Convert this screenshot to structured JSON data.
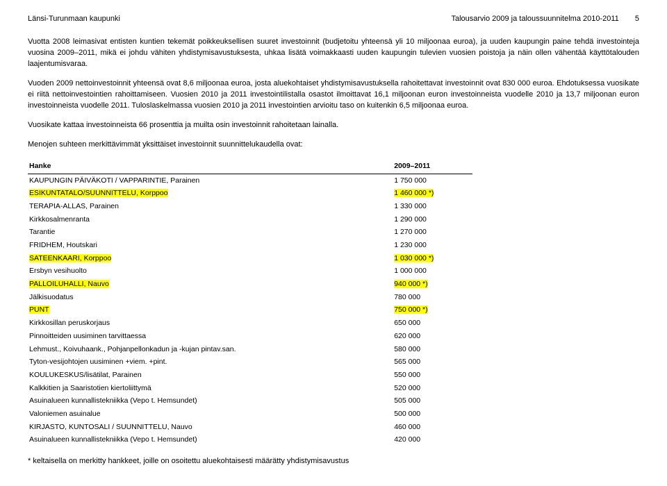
{
  "header": {
    "left": "Länsi-Turunmaan kaupunki",
    "right_title": "Talousarvio 2009 ja taloussuunnitelma 2010-2011",
    "page_number": "5"
  },
  "paragraphs": {
    "p1": "Vuotta 2008 leimasivat entisten kuntien tekemät poikkeuksellisen suuret investoinnit (budjetoitu yhteensä yli 10 miljoonaa euroa), ja uuden kaupungin paine tehdä investointeja vuosina 2009–2011, mikä ei johdu vähiten yhdistymisavustuksesta, uhkaa lisätä voimakkaasti uuden kaupungin tulevien vuosien poistoja ja näin ollen vähentää käyttötalouden laajentumisvaraa.",
    "p2": "Vuoden 2009 nettoinvestoinnit yhteensä ovat 8,6 miljoonaa euroa, josta aluekohtaiset yhdistymisavustuksella rahoitettavat investoinnit ovat 830 000 euroa. Ehdotuksessa vuosikate ei riitä nettoinvestointien rahoittamiseen. Vuosien 2010 ja 2011 investointilistalla osastot ilmoittavat 16,1 miljoonan euron investoinneista vuodelle 2010 ja 13,7 miljoonan euron investoinneista vuodelle 2011. Tuloslaskelmassa vuosien 2010 ja 2011 investointien arvioitu taso on kuitenkin 6,5 miljoonaa euroa.",
    "p3": "Vuosikate kattaa investoinneista 66 prosenttia ja muilta osin investoinnit rahoitetaan lainalla.",
    "p4": "Menojen suhteen merkittävimmät yksittäiset investoinnit suunnittelukaudella ovat:"
  },
  "table": {
    "col1": "Hanke",
    "col2": "2009–2011",
    "rows": [
      {
        "name": "KAUPUNGIN PÄIVÄKOTI / VAPPARINTIE, Parainen",
        "value": "1 750 000",
        "hl": false
      },
      {
        "name": "ESIKUNTATALO/SUUNNITTELU, Korppoo",
        "value": "1 460 000 *)",
        "hl": true
      },
      {
        "name": "TERAPIA-ALLAS, Parainen",
        "value": "1 330 000",
        "hl": false
      },
      {
        "name": "Kirkkosalmenranta",
        "value": "1 290 000",
        "hl": false
      },
      {
        "name": "Tarantie",
        "value": "1 270 000",
        "hl": false
      },
      {
        "name": "FRIDHEM, Houtskari",
        "value": "1 230 000",
        "hl": false
      },
      {
        "name": "SATEENKAARI, Korppoo",
        "value": "1 030 000 *)",
        "hl": true
      },
      {
        "name": "Ersbyn vesihuolto",
        "value": "1 000 000",
        "hl": false
      },
      {
        "name": "PALLOILUHALLI, Nauvo",
        "value": "940 000 *)",
        "hl": true
      },
      {
        "name": "Jälkisuodatus",
        "value": "780 000",
        "hl": false
      },
      {
        "name": "PUNT",
        "value": "750 000 *)",
        "hl": true
      },
      {
        "name": "Kirkkosillan peruskorjaus",
        "value": "650 000",
        "hl": false
      },
      {
        "name": "Pinnoitteiden uusiminen tarvittaessa",
        "value": "620 000",
        "hl": false
      },
      {
        "name": "Lehmust., Koivuhaank., Pohjanpellonkadun ja -kujan pintav.san.",
        "value": "580 000",
        "hl": false
      },
      {
        "name": "Tyton-vesijohtojen uusiminen +viem. +pint.",
        "value": "565 000",
        "hl": false
      },
      {
        "name": "KOULUKESKUS/lisätilat, Parainen",
        "value": "550 000",
        "hl": false
      },
      {
        "name": "Kalkkitien ja Saaristotien kiertoliittymä",
        "value": "520 000",
        "hl": false
      },
      {
        "name": "Asuinalueen kunnallistekniikka (Vepo t. Hemsundet)",
        "value": "505 000",
        "hl": false
      },
      {
        "name": "Valoniemen asuinalue",
        "value": "500 000",
        "hl": false
      },
      {
        "name": "KIRJASTO, KUNTOSALI / SUUNNITTELU, Nauvo",
        "value": "460 000",
        "hl": false
      },
      {
        "name": "Asuinalueen kunnallistekniikka (Vepo t. Hemsundet)",
        "value": "420 000",
        "hl": false
      }
    ]
  },
  "footnote": "* keltaisella on merkitty hankkeet, joille on osoitettu aluekohtaisesti määrätty yhdistymisavustus"
}
